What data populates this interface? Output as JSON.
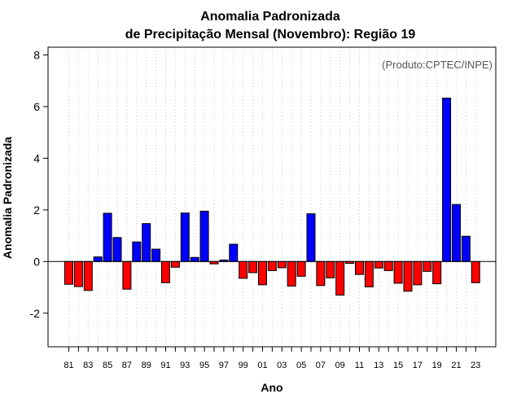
{
  "chart_data": {
    "type": "bar",
    "title_line1": "Anomalia Padronizada",
    "title_line2": "de Precipitação Mensal (Novembro): Região 19",
    "xlabel": "Ano",
    "ylabel": "Anomalia Padronizada",
    "annotation": "(Produto:CPTEC/INPE)",
    "ylim": [
      -3.3,
      8.3
    ],
    "yticks": [
      -2,
      0,
      2,
      4,
      6,
      8
    ],
    "x_tick_labels": [
      "81",
      "83",
      "85",
      "87",
      "89",
      "91",
      "93",
      "95",
      "97",
      "99",
      "01",
      "03",
      "05",
      "07",
      "09",
      "11",
      "13",
      "15",
      "17",
      "19",
      "21",
      "23"
    ],
    "grid": "vertical dotted",
    "positive_color": "#0000ff",
    "negative_color": "#ff0000",
    "categories": [
      "1981",
      "1982",
      "1983",
      "1984",
      "1985",
      "1986",
      "1987",
      "1988",
      "1989",
      "1990",
      "1991",
      "1992",
      "1993",
      "1994",
      "1995",
      "1996",
      "1997",
      "1998",
      "1999",
      "2000",
      "2001",
      "2002",
      "2003",
      "2004",
      "2005",
      "2006",
      "2007",
      "2008",
      "2009",
      "2010",
      "2011",
      "2012",
      "2013",
      "2014",
      "2015",
      "2016",
      "2017",
      "2018",
      "2019",
      "2020",
      "2021",
      "2022",
      "2023"
    ],
    "values": [
      -0.88,
      -0.97,
      -1.12,
      0.18,
      1.87,
      0.93,
      -1.07,
      0.76,
      1.47,
      0.48,
      -0.82,
      -0.22,
      1.88,
      0.16,
      1.95,
      -0.09,
      0.06,
      0.67,
      -0.65,
      -0.43,
      -0.9,
      -0.35,
      -0.24,
      -0.95,
      -0.57,
      1.85,
      -0.93,
      -0.63,
      -1.3,
      -0.07,
      -0.5,
      -0.98,
      -0.25,
      -0.35,
      -0.84,
      -1.15,
      -0.9,
      -0.38,
      -0.86,
      6.33,
      2.21,
      0.98,
      -0.82
    ]
  }
}
